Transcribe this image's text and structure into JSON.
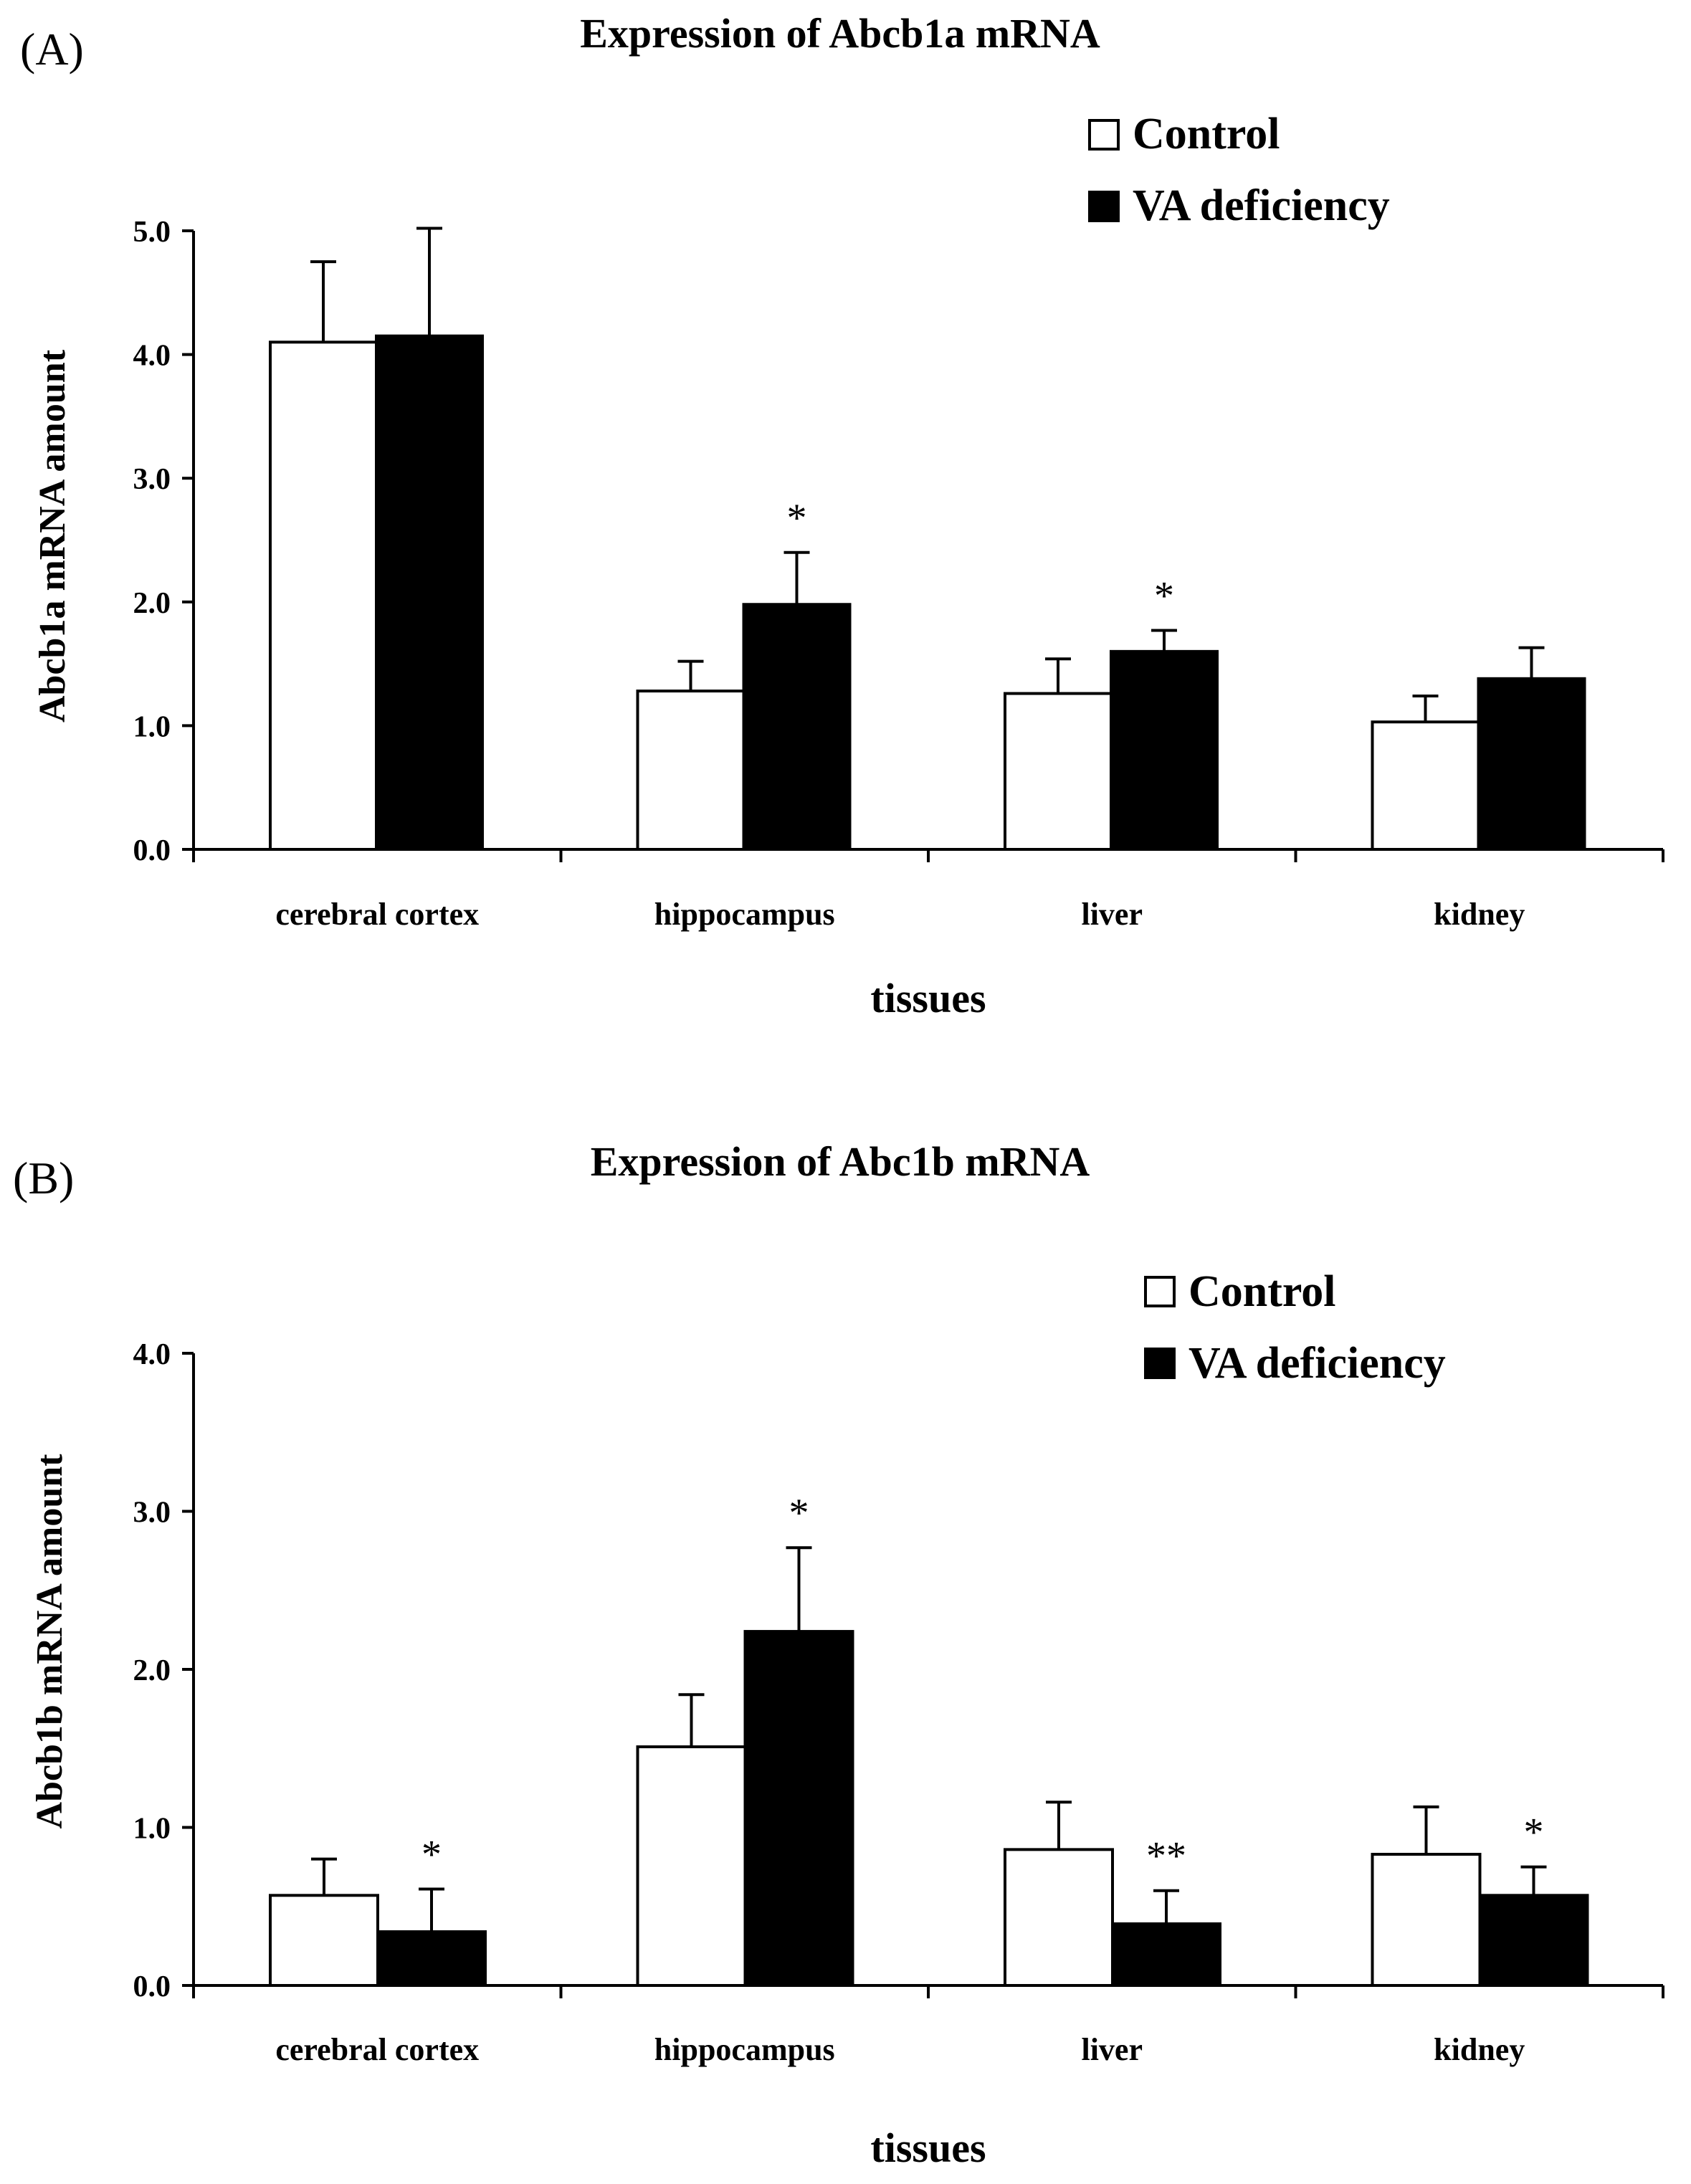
{
  "chart_data": [
    {
      "type": "bar",
      "panel_label": "(A)",
      "title": "Expression of Abcb1a mRNA",
      "xlabel": "tissues",
      "ylabel": "Abcb1a mRNA amount",
      "ylim": [
        0,
        5
      ],
      "yticks": [
        0,
        1,
        2,
        3,
        4,
        5
      ],
      "ytick_labels": [
        "0.0",
        "1.0",
        "2.0",
        "3.0",
        "4.0",
        "5.0"
      ],
      "categories": [
        "cerebral cortex",
        "hippocampus",
        "liver",
        "kidney"
      ],
      "legend_position": "top-right",
      "series": [
        {
          "name": "Control",
          "color": "#ffffff",
          "values": [
            4.1,
            1.28,
            1.26,
            1.03
          ],
          "errors": [
            0.65,
            0.24,
            0.28,
            0.21
          ],
          "significance": [
            "",
            "",
            "",
            ""
          ]
        },
        {
          "name": "VA deficiency",
          "color": "#000000",
          "values": [
            4.15,
            1.98,
            1.6,
            1.38
          ],
          "errors": [
            0.87,
            0.42,
            0.17,
            0.25
          ],
          "significance": [
            "",
            "*",
            "*",
            ""
          ]
        }
      ]
    },
    {
      "type": "bar",
      "panel_label": "(B)",
      "title": "Expression of Abc1b mRNA",
      "xlabel": "tissues",
      "ylabel": "Abcb1b mRNA amount",
      "ylim": [
        0,
        4
      ],
      "yticks": [
        0,
        1,
        2,
        3,
        4
      ],
      "ytick_labels": [
        "0.0",
        "1.0",
        "2.0",
        "3.0",
        "4.0"
      ],
      "categories": [
        "cerebral cortex",
        "hippocampus",
        "liver",
        "kidney"
      ],
      "legend_position": "top-right",
      "series": [
        {
          "name": "Control",
          "color": "#ffffff",
          "values": [
            0.57,
            1.51,
            0.86,
            0.83
          ],
          "errors": [
            0.23,
            0.33,
            0.3,
            0.3
          ],
          "significance": [
            "",
            "",
            "",
            ""
          ]
        },
        {
          "name": "VA deficiency",
          "color": "#000000",
          "values": [
            0.34,
            2.24,
            0.39,
            0.57
          ],
          "errors": [
            0.27,
            0.53,
            0.21,
            0.18
          ],
          "significance": [
            "*",
            "*",
            "**",
            "*"
          ]
        }
      ]
    }
  ]
}
